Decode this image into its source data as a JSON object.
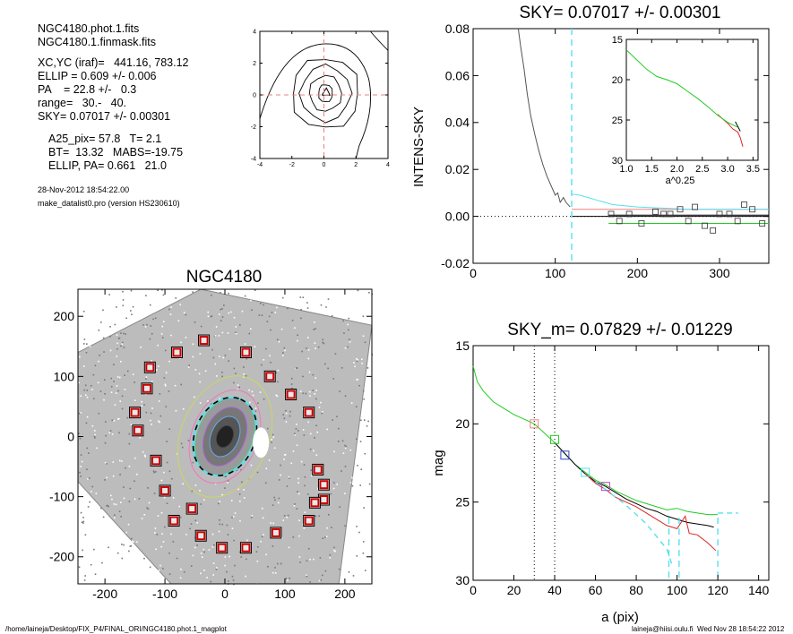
{
  "info": {
    "file1": "NGC4180.phot.1.fits",
    "file2": "NGC4180.1.finmask.fits",
    "xcyc": "XC,YC (iraf)=   441.16, 783.12",
    "ellip": "ELLIP = 0.609 +/- 0.006",
    "pa": "PA    = 22.8 +/-   0.3",
    "range": "range=   30.-   40.",
    "sky": "SKY= 0.07017 +/- 0.00301",
    "a25": "A25_pix= 57.8   T= 2.1",
    "bt": "BT=  13.32   MABS=-19.75",
    "ellippa": "ELLIP, PA= 0.661   21.0",
    "date": "28-Nov-2012 18:54:22.00",
    "program": "make_datalist0.pro (version HS230610)"
  },
  "footer": {
    "path": "/home/laineja/Desktop/FIX_P4/FINAL_ORI/NGC4180.phot.1_magplot",
    "user": "laineja@hiisi.oulu.fi  Wed Nov 28 18:54:22 2012"
  },
  "colors": {
    "black": "#000000",
    "cyan": "#55e0f0",
    "green": "#22cc22",
    "red": "#dd2222",
    "pink": "#f08080",
    "blue": "#3344cc",
    "magenta": "#c040c0",
    "gray": "#555555"
  },
  "chart_data": [
    {
      "type": "line",
      "id": "center-contour",
      "title": "",
      "xlim": [
        -4,
        4
      ],
      "ylim": [
        -4,
        4
      ],
      "xticks": [
        "-4",
        "-2",
        "0",
        "2",
        "4"
      ],
      "yticks": [
        "-4",
        "-2",
        "0",
        "2",
        "4"
      ],
      "crosshair_color": "#f08080"
    },
    {
      "type": "line",
      "id": "sky-profile",
      "title": "SKY= 0.07017 +/- 0.00301",
      "xlabel": "",
      "ylabel": "INTENS-SKY",
      "xlim": [
        0,
        360
      ],
      "ylim": [
        -0.02,
        0.08
      ],
      "xticks": [
        "0",
        "100",
        "200",
        "300"
      ],
      "yticks": [
        "-0.02",
        "0.00",
        "0.02",
        "0.04",
        "0.06",
        "0.08"
      ],
      "vline_x": 120,
      "series": [
        {
          "color": "#555555",
          "x": [
            55,
            58,
            62,
            66,
            70,
            75,
            80,
            85,
            90,
            95,
            100,
            103,
            106,
            110,
            113,
            118
          ],
          "y": [
            0.08,
            0.072,
            0.063,
            0.052,
            0.043,
            0.035,
            0.028,
            0.022,
            0.017,
            0.013,
            0.009,
            0.01,
            0.006,
            0.008,
            0.006,
            0.004
          ]
        },
        {
          "color": "#55e0f0",
          "x": [
            120,
            130,
            140,
            150,
            160,
            170,
            200,
            230,
            260,
            290,
            320,
            360
          ],
          "y": [
            0.0095,
            0.009,
            0.008,
            0.007,
            0.006,
            0.005,
            0.004,
            0.0035,
            0.003,
            0.003,
            0.003,
            0.003
          ]
        }
      ],
      "hlines": [
        {
          "color": "#000000",
          "y": 0.0
        },
        {
          "color": "#f08080",
          "y": 0.003
        },
        {
          "color": "#000000",
          "y": 0.0005,
          "x0": 165
        },
        {
          "color": "#22cc22",
          "y": -0.003,
          "x0": 165
        }
      ],
      "squares": {
        "x": [
          168,
          178,
          190,
          205,
          222,
          232,
          240,
          252,
          262,
          270,
          282,
          292,
          300,
          312,
          322,
          330,
          340,
          352
        ],
        "y": [
          0.001,
          -0.002,
          0.001,
          -0.003,
          0.002,
          0.001,
          0.001,
          0.003,
          -0.002,
          0.004,
          -0.004,
          -0.006,
          0.001,
          0.001,
          -0.002,
          0.005,
          0.003,
          -0.003
        ]
      },
      "inset": {
        "xlabel": "a^0.25",
        "xlim": [
          1.0,
          3.6
        ],
        "ylim": [
          15,
          30
        ],
        "xticks": [
          "1.0",
          "1.5",
          "2.0",
          "2.5",
          "3.0",
          "3.5"
        ],
        "yticks": [
          "15",
          "20",
          "25",
          "30"
        ],
        "green": {
          "x": [
            1.0,
            1.2,
            1.4,
            1.6,
            1.8,
            2.0,
            2.2,
            2.4,
            2.6,
            2.8,
            3.0,
            3.2
          ],
          "y": [
            16.3,
            17.5,
            18.7,
            19.6,
            20.0,
            20.5,
            21.4,
            22.3,
            23.3,
            24.4,
            25.3,
            25.9
          ]
        },
        "red": {
          "x": [
            2.8,
            3.0,
            3.1,
            3.2,
            3.25,
            3.3
          ],
          "y": [
            24.3,
            25.4,
            26.1,
            26.5,
            27.2,
            28.3
          ]
        }
      }
    },
    {
      "type": "scatter",
      "id": "galaxy-image",
      "title": "NGC4180",
      "xlim": [
        -245,
        245
      ],
      "ylim": [
        -245,
        245
      ],
      "xticks": [
        "-200",
        "-100",
        "0",
        "100",
        "200"
      ],
      "yticks": [
        "-200",
        "-100",
        "0",
        "100",
        "200"
      ],
      "ellipse": {
        "major": 135,
        "minor": 61,
        "pa": 22.8
      },
      "mask_points": {
        "x": [
          -35,
          35,
          -80,
          -125,
          75,
          -130,
          110,
          -150,
          140,
          -145,
          -115,
          155,
          165,
          -100,
          165,
          -55,
          150,
          -85,
          140,
          -40,
          85,
          -5,
          35
        ],
        "y": [
          160,
          140,
          140,
          115,
          100,
          80,
          70,
          40,
          40,
          10,
          -40,
          -55,
          -80,
          -90,
          -105,
          -120,
          -110,
          -140,
          -140,
          -165,
          -160,
          -185,
          -185
        ]
      }
    },
    {
      "type": "line",
      "id": "mag-profile",
      "title": "SKY_m=  0.07829 +/- 0.01229",
      "xlabel": "a (pix)",
      "ylabel": "mag",
      "xlim": [
        0,
        145
      ],
      "ylim": [
        15,
        30
      ],
      "xticks": [
        "0",
        "20",
        "40",
        "60",
        "80",
        "100",
        "120",
        "140"
      ],
      "yticks": [
        "15",
        "20",
        "25",
        "30"
      ],
      "vlines_dotted": [
        30,
        40
      ],
      "series": [
        {
          "color": "#22cc22",
          "x": [
            0,
            2,
            5,
            10,
            15,
            20,
            25,
            30,
            35,
            40,
            45,
            50,
            55,
            60,
            65,
            70,
            75,
            80,
            85,
            90,
            95,
            100,
            105,
            110,
            115,
            120
          ],
          "y": [
            16.3,
            17.3,
            17.9,
            18.6,
            19.0,
            19.4,
            19.7,
            20.0,
            20.6,
            21.2,
            21.9,
            22.6,
            23.1,
            23.6,
            23.9,
            24.3,
            24.6,
            24.9,
            25.1,
            25.3,
            25.5,
            25.4,
            25.6,
            25.7,
            25.8,
            25.8
          ]
        },
        {
          "color": "#000000",
          "x": [
            40,
            45,
            50,
            55,
            60,
            65,
            70,
            75,
            80,
            85,
            90,
            95,
            100,
            105,
            110,
            115,
            118
          ],
          "y": [
            21.2,
            21.9,
            22.6,
            23.2,
            23.7,
            24.0,
            24.4,
            24.8,
            25.1,
            25.4,
            25.6,
            25.9,
            26.1,
            26.3,
            26.4,
            26.5,
            26.6
          ]
        },
        {
          "color": "#dd2222",
          "x": [
            55,
            60,
            65,
            70,
            75,
            80,
            85,
            90,
            95,
            100,
            104,
            106,
            110,
            115,
            119
          ],
          "y": [
            23.2,
            23.8,
            24.2,
            24.7,
            25.0,
            25.3,
            25.7,
            26.1,
            26.5,
            26.7,
            25.9,
            27.0,
            27.1,
            27.6,
            28.1
          ]
        },
        {
          "color": "#55e0f0",
          "x": [
            60,
            65,
            70,
            75,
            80,
            85,
            90,
            95,
            98
          ],
          "y": [
            23.7,
            24.2,
            24.7,
            25.2,
            25.8,
            26.4,
            27.2,
            28.0,
            29.2
          ]
        }
      ],
      "cyan_dashed_vlines": [
        96,
        101,
        120
      ],
      "cyan_dashed_h": {
        "x0": 120,
        "x1": 130,
        "y": 25.7
      },
      "markers": [
        {
          "x": 30,
          "y": 20.0,
          "color": "#f08080"
        },
        {
          "x": 40,
          "y": 21.0,
          "color": "#22cc22"
        },
        {
          "x": 45,
          "y": 22.0,
          "color": "#3344cc"
        },
        {
          "x": 55,
          "y": 23.1,
          "color": "#55e0f0"
        },
        {
          "x": 65,
          "y": 24.0,
          "color": "#c040c0"
        }
      ]
    }
  ]
}
